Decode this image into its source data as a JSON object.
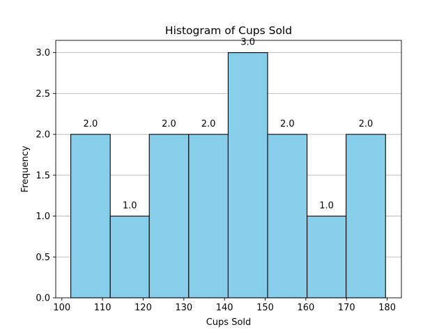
{
  "chart_data": {
    "type": "bar",
    "title": "Histogram of Cups Sold",
    "xlabel": "Cups Sold",
    "ylabel": "Frequency",
    "bins": [
      {
        "start": 102.2,
        "end": 111.9,
        "value": 2.0
      },
      {
        "start": 111.9,
        "end": 121.5,
        "value": 1.0
      },
      {
        "start": 121.5,
        "end": 131.2,
        "value": 2.0
      },
      {
        "start": 131.2,
        "end": 140.9,
        "value": 2.0
      },
      {
        "start": 140.9,
        "end": 150.6,
        "value": 3.0
      },
      {
        "start": 150.6,
        "end": 160.3,
        "value": 2.0
      },
      {
        "start": 160.3,
        "end": 169.9,
        "value": 1.0
      },
      {
        "start": 169.9,
        "end": 179.6,
        "value": 2.0
      }
    ],
    "data_labels": [
      "2.0",
      "1.0",
      "2.0",
      "2.0",
      "3.0",
      "2.0",
      "1.0",
      "2.0"
    ],
    "xlim": [
      98.5,
      183.5
    ],
    "ylim": [
      0,
      3.15
    ],
    "xticks": [
      100,
      110,
      120,
      130,
      140,
      150,
      160,
      170,
      180
    ],
    "xtick_labels": [
      "100",
      "110",
      "120",
      "130",
      "140",
      "150",
      "160",
      "170",
      "180"
    ],
    "yticks": [
      0,
      0.5,
      1,
      1.5,
      2,
      2.5,
      3
    ],
    "ytick_labels": [
      "0.0",
      "0.5",
      "1.0",
      "1.5",
      "2.0",
      "2.5",
      "3.0"
    ],
    "grid": "y",
    "colors": {
      "bar_fill": "#87ceeb",
      "bar_edge": "#000000",
      "grid": "#b0b0b0"
    }
  }
}
